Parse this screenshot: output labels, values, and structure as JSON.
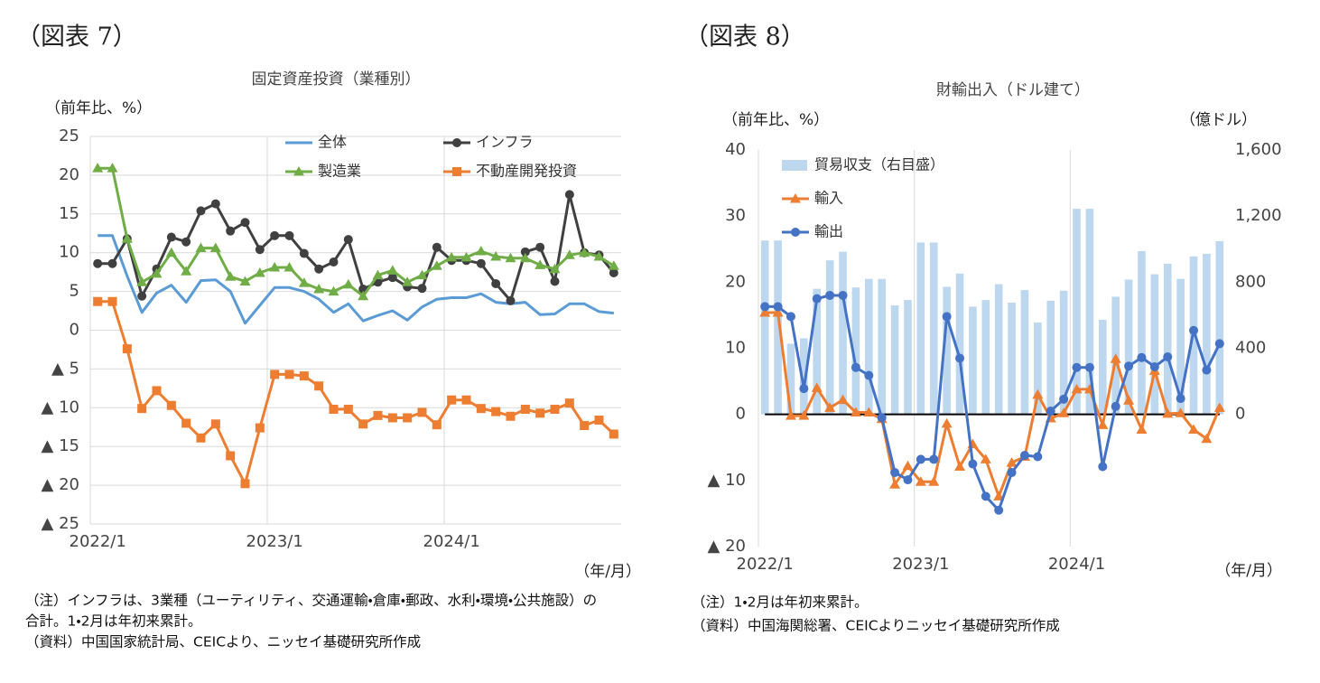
{
  "chart_data": [
    {
      "type": "line",
      "figure_label": "（図表 7）",
      "title": "固定資産投資（業種別）",
      "ylabel": "（前年比、%）",
      "xlabel": "（年/月）",
      "notes": [
        "（注）インフラは、3業種（ユーティリティ、交通運輸・倉庫・郵政、水利・環境・公共施設）の",
        "合計。1・2月は年初来累計。",
        "（資料）中国国家統計局、CEICより、ニッセイ基礎研究所作成"
      ],
      "categories": [
        "2022/1",
        null,
        null,
        null,
        null,
        null,
        null,
        null,
        null,
        null,
        null,
        null,
        "2023/1",
        null,
        null,
        null,
        null,
        null,
        null,
        null,
        null,
        null,
        null,
        null,
        "2024/1",
        null,
        null,
        null,
        null,
        null,
        null,
        null,
        null,
        null,
        null,
        null
      ],
      "ylim": [
        -25,
        25
      ],
      "yticks": [
        25,
        20,
        15,
        10,
        5,
        0,
        {
          "value": -5,
          "label": "▲ 5"
        },
        {
          "value": -10,
          "label": "▲ 10"
        },
        {
          "value": -15,
          "label": "▲ 15"
        },
        {
          "value": -20,
          "label": "▲ 20"
        },
        {
          "value": -25,
          "label": "▲ 25"
        }
      ],
      "grid": "both",
      "series": [
        {
          "name": "全体",
          "color": "#5b9bd5",
          "marker": "none",
          "values": [
            12.2,
            12.2,
            7.0,
            2.3,
            4.8,
            5.8,
            3.6,
            6.4,
            6.5,
            5.0,
            0.9,
            3.2,
            5.5,
            5.5,
            5.0,
            4.0,
            2.3,
            3.4,
            1.2,
            1.9,
            2.5,
            1.3,
            3.0,
            4.0,
            4.2,
            4.2,
            4.7,
            3.6,
            3.4,
            3.6,
            2.0,
            2.1,
            3.4,
            3.4,
            2.4,
            2.2
          ]
        },
        {
          "name": "インフラ",
          "color": "#404040",
          "marker": "circle",
          "values": [
            8.6,
            8.6,
            11.8,
            4.4,
            7.9,
            12.0,
            11.4,
            15.4,
            16.3,
            12.8,
            13.9,
            10.4,
            12.2,
            12.2,
            9.9,
            7.9,
            8.8,
            11.7,
            5.3,
            6.2,
            6.8,
            5.6,
            5.4,
            10.7,
            9.0,
            9.0,
            8.6,
            6.0,
            3.8,
            10.1,
            10.7,
            6.3,
            17.5,
            10.0,
            9.7,
            7.4
          ]
        },
        {
          "name": "製造業",
          "color": "#70ad47",
          "marker": "triangle",
          "values": [
            20.9,
            20.9,
            11.8,
            6.2,
            7.3,
            10.0,
            7.6,
            10.6,
            10.6,
            6.9,
            6.3,
            7.4,
            8.1,
            8.1,
            6.1,
            5.3,
            5.0,
            5.9,
            4.4,
            7.1,
            7.7,
            6.2,
            7.1,
            8.3,
            9.4,
            9.4,
            10.2,
            9.5,
            9.3,
            9.3,
            8.4,
            7.9,
            9.7,
            10.0,
            9.5,
            8.3
          ]
        },
        {
          "name": "不動産開発投資",
          "color": "#ed7d31",
          "marker": "square",
          "values": [
            3.7,
            3.7,
            -2.4,
            -10.1,
            -7.8,
            -9.7,
            -12.0,
            -13.9,
            -12.1,
            -16.2,
            -19.8,
            -12.6,
            -5.7,
            -5.7,
            -5.9,
            -7.2,
            -10.2,
            -10.2,
            -12.1,
            -11.0,
            -11.3,
            -11.3,
            -10.6,
            -12.2,
            -9.0,
            -9.0,
            -10.1,
            -10.5,
            -11.1,
            -10.2,
            -10.7,
            -10.2,
            -9.4,
            -12.3,
            -11.6,
            -13.4
          ]
        }
      ]
    },
    {
      "type": "combo",
      "figure_label": "（図表 8）",
      "title": "財輸出入（ドル建て）",
      "ylabel": "（前年比、%）",
      "y2label": "（億ドル）",
      "xlabel": "（年/月）",
      "notes": [
        "（注）1・2月は年初来累計。",
        "（資料）中国海関総署、CEICよりニッセイ基礎研究所作成"
      ],
      "categories": [
        "2022/1",
        null,
        null,
        null,
        null,
        null,
        null,
        null,
        null,
        null,
        null,
        null,
        "2023/1",
        null,
        null,
        null,
        null,
        null,
        null,
        null,
        null,
        null,
        null,
        null,
        "2024/1",
        null,
        null,
        null,
        null,
        null,
        null,
        null,
        null,
        null,
        null,
        null
      ],
      "ylim": [
        -20,
        40
      ],
      "yticks": [
        40,
        30,
        20,
        10,
        0,
        {
          "value": -10,
          "label": "▲ 10"
        },
        {
          "value": -20,
          "label": "▲ 20"
        }
      ],
      "y2lim": [
        -800,
        1600
      ],
      "y2ticks": [
        {
          "value": 1600,
          "label": "1,600"
        },
        {
          "value": 1200,
          "label": "1,200"
        },
        800,
        400,
        0
      ],
      "grid": "x",
      "zero_line": true,
      "series": [
        {
          "name": "貿易収支（右目盛）",
          "color": "#bdd7ee",
          "type": "bar",
          "axis": "y2",
          "values": [
            1052,
            1052,
            428,
            460,
            760,
            932,
            984,
            768,
            820,
            820,
            660,
            692,
            1040,
            1040,
            772,
            852,
            652,
            692,
            788,
            676,
            752,
            556,
            688,
            748,
            1244,
            1244,
            572,
            712,
            816,
            988,
            848,
            912,
            820,
            956,
            972,
            1048
          ]
        },
        {
          "name": "輸入",
          "color": "#ed7d31",
          "type": "line",
          "marker": "triangle",
          "values": [
            15.4,
            15.4,
            -0.2,
            -0.2,
            4.0,
            1.0,
            2.2,
            0.3,
            0.3,
            -0.7,
            -10.6,
            -7.8,
            -10.2,
            -10.2,
            -1.4,
            -7.9,
            -4.5,
            -6.8,
            -12.4,
            -7.3,
            -6.4,
            3.0,
            -0.6,
            0.2,
            3.8,
            3.8,
            -1.6,
            8.4,
            2.1,
            -2.3,
            6.6,
            0.1,
            0.2,
            -2.3,
            -3.7,
            1.0
          ]
        },
        {
          "name": "輸出",
          "color": "#4472c4",
          "type": "line",
          "marker": "circle",
          "values": [
            16.3,
            16.3,
            14.8,
            3.9,
            17.5,
            18.0,
            18.0,
            7.1,
            5.9,
            -0.5,
            -8.8,
            -9.9,
            -6.8,
            -6.8,
            14.8,
            8.5,
            -7.5,
            -12.4,
            -14.5,
            -8.8,
            -6.2,
            -6.4,
            0.5,
            2.3,
            7.1,
            7.1,
            -7.9,
            1.2,
            7.3,
            8.6,
            7.2,
            8.7,
            2.4,
            12.7,
            6.7,
            10.7
          ]
        }
      ]
    }
  ]
}
